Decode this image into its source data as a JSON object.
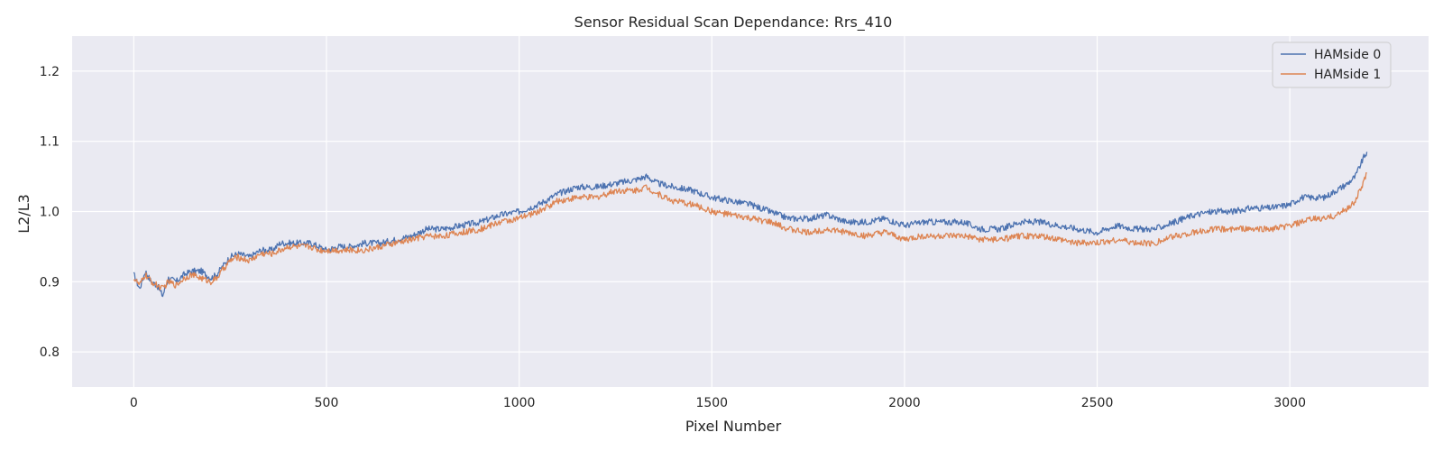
{
  "chart_data": {
    "type": "line",
    "title": "Sensor Residual Scan Dependance: Rrs_410",
    "xlabel": "Pixel Number",
    "ylabel": "L2/L3",
    "xlim": [
      -160,
      3360
    ],
    "ylim": [
      0.75,
      1.25
    ],
    "xticks": [
      0,
      500,
      1000,
      1500,
      2000,
      2500,
      3000
    ],
    "yticks": [
      0.8,
      0.9,
      1.0,
      1.1,
      1.2
    ],
    "xtick_labels": [
      "0",
      "500",
      "1000",
      "1500",
      "2000",
      "2500",
      "3000"
    ],
    "ytick_labels": [
      "0.8",
      "0.9",
      "1.0",
      "1.1",
      "1.2"
    ],
    "grid": true,
    "legend_position": "top-right",
    "background": "#eaeaf2",
    "series": [
      {
        "name": "HAMside 0",
        "color": "#4c72b0",
        "x": [
          0,
          15,
          30,
          45,
          60,
          75,
          90,
          110,
          130,
          150,
          175,
          200,
          215,
          235,
          250,
          270,
          300,
          330,
          360,
          380,
          400,
          430,
          460,
          480,
          500,
          530,
          560,
          600,
          640,
          680,
          720,
          760,
          800,
          850,
          900,
          950,
          1000,
          1050,
          1100,
          1150,
          1200,
          1250,
          1300,
          1330,
          1360,
          1400,
          1450,
          1500,
          1550,
          1600,
          1650,
          1700,
          1750,
          1800,
          1850,
          1900,
          1950,
          2000,
          2050,
          2100,
          2150,
          2200,
          2250,
          2300,
          2350,
          2400,
          2450,
          2500,
          2550,
          2600,
          2650,
          2700,
          2750,
          2800,
          2850,
          2900,
          2950,
          3000,
          3030,
          3060,
          3090,
          3120,
          3150,
          3170,
          3190,
          3200
        ],
        "y": [
          0.91,
          0.89,
          0.915,
          0.9,
          0.895,
          0.88,
          0.905,
          0.9,
          0.91,
          0.915,
          0.915,
          0.905,
          0.91,
          0.925,
          0.935,
          0.94,
          0.935,
          0.945,
          0.945,
          0.955,
          0.955,
          0.955,
          0.955,
          0.95,
          0.945,
          0.95,
          0.95,
          0.955,
          0.955,
          0.96,
          0.965,
          0.975,
          0.975,
          0.98,
          0.985,
          0.995,
          1.0,
          1.01,
          1.025,
          1.035,
          1.035,
          1.04,
          1.045,
          1.05,
          1.04,
          1.035,
          1.03,
          1.02,
          1.015,
          1.01,
          1.0,
          0.99,
          0.99,
          0.995,
          0.985,
          0.985,
          0.99,
          0.98,
          0.985,
          0.985,
          0.985,
          0.975,
          0.975,
          0.985,
          0.985,
          0.98,
          0.975,
          0.97,
          0.98,
          0.975,
          0.975,
          0.985,
          0.995,
          1.0,
          1.0,
          1.005,
          1.005,
          1.01,
          1.02,
          1.02,
          1.02,
          1.03,
          1.04,
          1.05,
          1.075,
          1.085
        ]
      },
      {
        "name": "HAMside 1",
        "color": "#dd8452",
        "x": [
          0,
          15,
          30,
          45,
          60,
          75,
          90,
          110,
          130,
          150,
          175,
          200,
          215,
          235,
          250,
          270,
          300,
          330,
          360,
          380,
          400,
          430,
          460,
          480,
          500,
          530,
          560,
          600,
          640,
          680,
          720,
          760,
          800,
          850,
          900,
          950,
          1000,
          1050,
          1100,
          1150,
          1200,
          1250,
          1300,
          1330,
          1360,
          1400,
          1450,
          1500,
          1550,
          1600,
          1650,
          1700,
          1750,
          1800,
          1850,
          1900,
          1950,
          2000,
          2050,
          2100,
          2150,
          2200,
          2250,
          2300,
          2350,
          2400,
          2450,
          2500,
          2550,
          2600,
          2650,
          2700,
          2750,
          2800,
          2850,
          2900,
          2950,
          3000,
          3030,
          3060,
          3090,
          3120,
          3150,
          3170,
          3190,
          3200
        ],
        "y": [
          0.905,
          0.895,
          0.91,
          0.9,
          0.895,
          0.89,
          0.9,
          0.895,
          0.905,
          0.91,
          0.905,
          0.9,
          0.905,
          0.92,
          0.93,
          0.935,
          0.93,
          0.94,
          0.94,
          0.945,
          0.95,
          0.95,
          0.95,
          0.945,
          0.945,
          0.945,
          0.945,
          0.945,
          0.95,
          0.955,
          0.96,
          0.965,
          0.965,
          0.97,
          0.975,
          0.985,
          0.99,
          1.0,
          1.015,
          1.02,
          1.02,
          1.03,
          1.03,
          1.035,
          1.025,
          1.015,
          1.01,
          1.0,
          0.995,
          0.99,
          0.985,
          0.975,
          0.97,
          0.975,
          0.97,
          0.965,
          0.97,
          0.96,
          0.965,
          0.965,
          0.965,
          0.96,
          0.96,
          0.965,
          0.965,
          0.96,
          0.955,
          0.955,
          0.96,
          0.955,
          0.955,
          0.965,
          0.97,
          0.975,
          0.975,
          0.975,
          0.975,
          0.98,
          0.985,
          0.99,
          0.99,
          0.995,
          1.005,
          1.015,
          1.04,
          1.055
        ]
      }
    ]
  }
}
